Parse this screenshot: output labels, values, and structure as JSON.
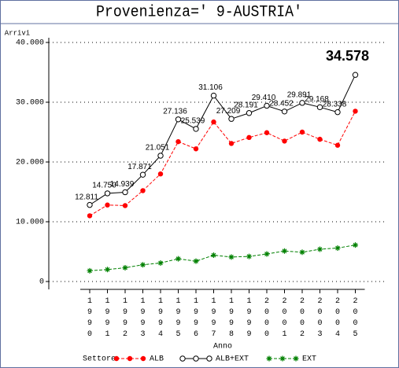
{
  "chart_data": {
    "type": "line",
    "title": "Provenienza=' 9-AUSTRIA'",
    "y_label": "Arrivi",
    "x_label": "Anno",
    "legend_title": "Settore",
    "categories": [
      "1990",
      "1991",
      "1992",
      "1993",
      "1994",
      "1995",
      "1996",
      "1997",
      "1998",
      "1999",
      "2000",
      "2001",
      "2002",
      "2003",
      "2004",
      "2005"
    ],
    "ylim": [
      0,
      40000
    ],
    "yticks": [
      0,
      {
        "value": 10000,
        "label": "10.000"
      },
      {
        "value": 20000,
        "label": "20.000"
      },
      {
        "value": 30000,
        "label": "30.000"
      },
      {
        "value": 40000,
        "label": "40.000"
      }
    ],
    "grid": true,
    "series": [
      {
        "name": "ALB",
        "color": "#ff0000",
        "marker": "dot",
        "dashed": true,
        "values": [
          11000,
          12800,
          12700,
          15200,
          18000,
          23400,
          22200,
          26700,
          23100,
          24100,
          24900,
          23500,
          25000,
          23800,
          22800,
          28500
        ]
      },
      {
        "name": "ALB+EXT",
        "color": "#000000",
        "marker": "circle",
        "dashed": false,
        "values": [
          12811,
          14750,
          14939,
          17871,
          21051,
          27136,
          25539,
          31106,
          27209,
          28191,
          29410,
          28452,
          29891,
          29168,
          28338,
          34578
        ],
        "value_labels": [
          "12.811",
          "14.750",
          "14.939",
          "17.871",
          "21.051",
          "27.136",
          "25.539",
          "31.106",
          "27.209",
          "28.191",
          "29.410",
          "28.452",
          "29.891",
          "29.168",
          "28.338",
          "34.578"
        ]
      },
      {
        "name": "EXT",
        "color": "#008000",
        "marker": "star",
        "dashed": true,
        "values": [
          1800,
          2000,
          2300,
          2800,
          3100,
          3800,
          3400,
          4400,
          4100,
          4200,
          4600,
          5100,
          4900,
          5400,
          5600,
          6100
        ]
      }
    ]
  }
}
